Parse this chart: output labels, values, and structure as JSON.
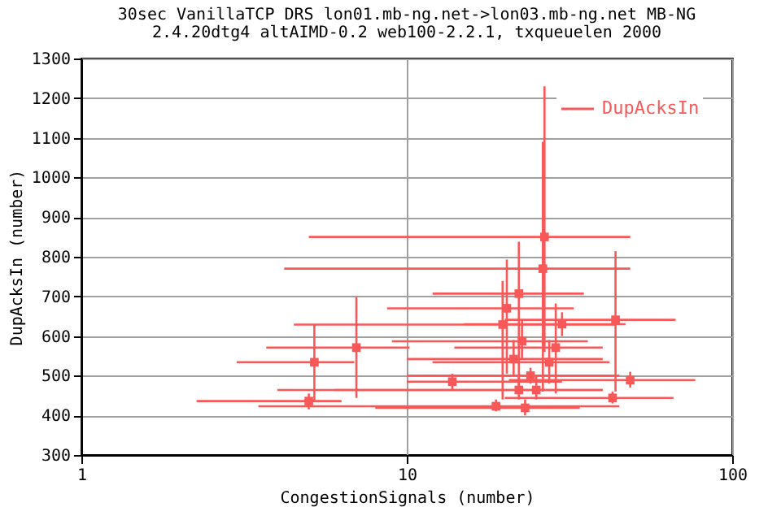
{
  "chart_data": {
    "type": "scatter",
    "title": "30sec VanillaTCP DRS lon01.mb-ng.net->lon03.mb-ng.net MB-NG",
    "subtitle": "2.4.20dtg4 altAIMD-0.2 web100-2.2.1, txqueuelen 2000",
    "xlabel": "CongestionSignals (number)",
    "ylabel": "DupAcksIn (number)",
    "log": "x",
    "xlim": [
      1,
      100
    ],
    "xticks": [
      1,
      10,
      100
    ],
    "ylim": [
      300,
      1300
    ],
    "yticks": [
      300,
      400,
      500,
      600,
      700,
      800,
      900,
      1000,
      1100,
      1200,
      1300
    ],
    "grid": true,
    "legend": "top right",
    "marker": "square",
    "series": [
      {
        "name": "DupAcksIn",
        "color": "#f85858",
        "x": [
          26.5,
          26.2,
          43.8,
          48.6,
          42.9,
          28.7,
          20.3,
          22.1,
          22.6,
          21.3,
          22.1,
          27.4,
          25.0,
          23.1,
          18.8,
          19.7,
          7.0,
          5.2,
          5.0,
          13.8,
          30,
          24
        ],
        "values": [
          850,
          770,
          641,
          489,
          444,
          571,
          670,
          707,
          587,
          542,
          464,
          534,
          464,
          419,
          423,
          629,
          571,
          534,
          436,
          485,
          630,
          500
        ],
        "errors": [
          [
            560,
            1230
          ],
          [
            460,
            1090
          ],
          [
            460,
            814
          ],
          [
            470,
            510
          ],
          [
            430,
            460
          ],
          [
            455,
            682
          ],
          [
            505,
            793
          ],
          [
            452,
            838
          ],
          [
            540,
            640
          ],
          [
            500,
            590
          ],
          [
            440,
            500
          ],
          [
            480,
            590
          ],
          [
            440,
            500
          ],
          [
            400,
            440
          ],
          [
            410,
            440
          ],
          [
            440,
            739
          ],
          [
            444,
            698
          ],
          [
            436,
            629
          ],
          [
            415,
            455
          ],
          [
            465,
            505
          ],
          [
            600,
            660
          ],
          [
            480,
            520
          ]
        ],
        "xerrors": [
          [
            5,
            48.6
          ],
          [
            4.2,
            48.6
          ],
          [
            20,
            67
          ],
          [
            20.6,
            77
          ],
          [
            20,
            66
          ],
          [
            14,
            40
          ],
          [
            8.7,
            32.6
          ],
          [
            12,
            35
          ],
          [
            9,
            36
          ],
          [
            10,
            40
          ],
          [
            6,
            40
          ],
          [
            12,
            42
          ],
          [
            4,
            40
          ],
          [
            8,
            34
          ],
          [
            3.5,
            45
          ],
          [
            4.5,
            44
          ],
          [
            3.7,
            10.2
          ],
          [
            3.0,
            6.9
          ],
          [
            2.26,
            6.3
          ],
          [
            10,
            30
          ],
          [
            15,
            47
          ],
          [
            10,
            45
          ]
        ]
      }
    ]
  }
}
